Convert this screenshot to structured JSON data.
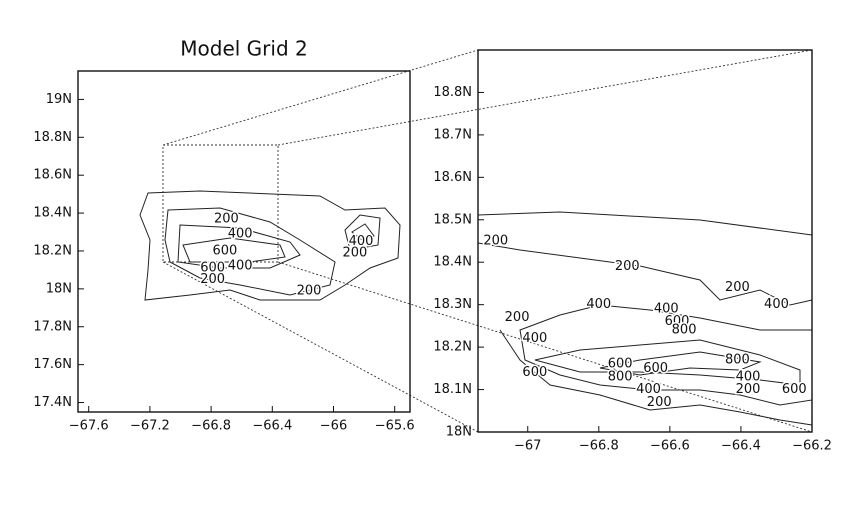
{
  "panels": [
    {
      "title": "Model Grid 2",
      "xlim": [
        -67.67,
        -65.5
      ],
      "ylim": [
        17.35,
        19.15
      ],
      "xticks": [
        {
          "value": -67.6,
          "label": "−67.6"
        },
        {
          "value": -67.2,
          "label": "−67.2"
        },
        {
          "value": -66.8,
          "label": "−66.8"
        },
        {
          "value": -66.4,
          "label": "−66.4"
        },
        {
          "value": -66,
          "label": "−66"
        },
        {
          "value": -65.6,
          "label": "−65.6"
        }
      ],
      "yticks": [
        {
          "value": 17.4,
          "label": "17.4N"
        },
        {
          "value": 17.6,
          "label": "17.6N"
        },
        {
          "value": 17.8,
          "label": "17.8N"
        },
        {
          "value": 18,
          "label": "18N"
        },
        {
          "value": 18.2,
          "label": "18.2N"
        },
        {
          "value": 18.4,
          "label": "18.4N"
        },
        {
          "value": 18.6,
          "label": "18.6N"
        },
        {
          "value": 18.8,
          "label": "18.8N"
        },
        {
          "value": 19,
          "label": "19N"
        }
      ],
      "contour_labels": [
        {
          "value": 200,
          "x": -66.7,
          "y": 18.37
        },
        {
          "value": 400,
          "x": -66.61,
          "y": 18.29
        },
        {
          "value": 600,
          "x": -66.71,
          "y": 18.2
        },
        {
          "value": 400,
          "x": -66.61,
          "y": 18.12
        },
        {
          "value": 600,
          "x": -66.79,
          "y": 18.11
        },
        {
          "value": 200,
          "x": -66.79,
          "y": 18.05
        },
        {
          "value": 200,
          "x": -66.16,
          "y": 17.99
        },
        {
          "value": 400,
          "x": -65.82,
          "y": 18.25
        },
        {
          "value": 200,
          "x": -65.86,
          "y": 18.19
        }
      ]
    },
    {
      "xlim": [
        -67.14,
        -66.2
      ],
      "ylim": [
        18,
        18.9
      ],
      "xticks": [
        {
          "value": -67,
          "label": "−67"
        },
        {
          "value": -66.8,
          "label": "−66.8"
        },
        {
          "value": -66.6,
          "label": "−66.6"
        },
        {
          "value": -66.4,
          "label": "−66.4"
        },
        {
          "value": -66.2,
          "label": "−66.2"
        }
      ],
      "yticks": [
        {
          "value": 18,
          "label": "18N"
        },
        {
          "value": 18.1,
          "label": "18.1N"
        },
        {
          "value": 18.2,
          "label": "18.2N"
        },
        {
          "value": 18.3,
          "label": "18.3N"
        },
        {
          "value": 18.4,
          "label": "18.4N"
        },
        {
          "value": 18.5,
          "label": "18.5N"
        },
        {
          "value": 18.6,
          "label": "18.6N"
        },
        {
          "value": 18.7,
          "label": "18.7N"
        },
        {
          "value": 18.8,
          "label": "18.8N"
        }
      ],
      "contour_labels": [
        {
          "value": 200,
          "x": -67.09,
          "y": 18.45
        },
        {
          "value": 200,
          "x": -66.72,
          "y": 18.39
        },
        {
          "value": 200,
          "x": -66.41,
          "y": 18.34
        },
        {
          "value": 400,
          "x": -66.3,
          "y": 18.3
        },
        {
          "value": 400,
          "x": -66.8,
          "y": 18.3
        },
        {
          "value": 200,
          "x": -67.03,
          "y": 18.27
        },
        {
          "value": 400,
          "x": -66.98,
          "y": 18.22
        },
        {
          "value": 400,
          "x": -66.61,
          "y": 18.29
        },
        {
          "value": 600,
          "x": -66.58,
          "y": 18.26
        },
        {
          "value": 800,
          "x": -66.56,
          "y": 18.24
        },
        {
          "value": 800,
          "x": -66.41,
          "y": 18.17
        },
        {
          "value": 600,
          "x": -66.74,
          "y": 18.16
        },
        {
          "value": 800,
          "x": -66.74,
          "y": 18.13
        },
        {
          "value": 600,
          "x": -66.64,
          "y": 18.15
        },
        {
          "value": 600,
          "x": -66.98,
          "y": 18.14
        },
        {
          "value": 400,
          "x": -66.66,
          "y": 18.1
        },
        {
          "value": 400,
          "x": -66.38,
          "y": 18.13
        },
        {
          "value": 200,
          "x": -66.38,
          "y": 18.1
        },
        {
          "value": 600,
          "x": -66.25,
          "y": 18.1
        },
        {
          "value": 200,
          "x": -66.63,
          "y": 18.07
        }
      ]
    }
  ]
}
